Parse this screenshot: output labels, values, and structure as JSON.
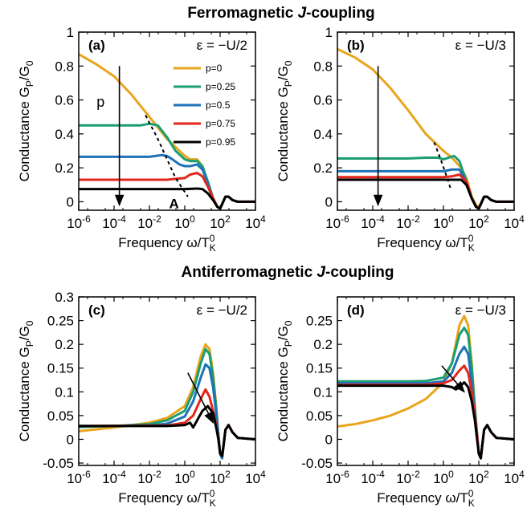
{
  "titles": {
    "top_prefix": "Ferromagnetic ",
    "top_italic": "J",
    "top_suffix": "-coupling",
    "bottom_prefix": "Antiferromagnetic ",
    "bottom_italic": "J",
    "bottom_suffix": "-coupling"
  },
  "colors": {
    "p0": "#e8a51c",
    "p025": "#1a9e72",
    "p05": "#1e72b8",
    "p075": "#e1261c",
    "p095": "#000000"
  },
  "legend": [
    "p=0",
    "p=0.25",
    "p=0.5",
    "p=0.75",
    "p=0.95"
  ],
  "chart_data": [
    {
      "panel": "(a)",
      "type": "line",
      "epsilon": "ε = −U/2",
      "xlabel": "Frequency ω/T_K^0",
      "ylabel": "Conductance G_P/G_0",
      "xscale": "log",
      "xlim": [
        1e-06,
        10000.0
      ],
      "ylim": [
        -0.05,
        1.0
      ],
      "xticks": [
        -6,
        -4,
        -2,
        0,
        2,
        4
      ],
      "yticks": [
        "0",
        "0.2",
        "0.4",
        "0.6",
        "0.8",
        "1"
      ],
      "yticks_values": [
        0,
        0.2,
        0.4,
        0.6,
        0.8,
        1.0
      ],
      "annotations": {
        "arrow_label": "p",
        "dashed_label": "A"
      },
      "series": [
        {
          "name": "p=0",
          "x": [
            1e-06,
            1e-05,
            0.0001,
            0.001,
            0.01,
            0.1,
            1,
            2,
            5,
            10,
            20,
            40,
            70,
            100,
            150,
            200,
            300,
            500,
            1000,
            10000
          ],
          "y": [
            0.87,
            0.81,
            0.74,
            0.63,
            0.5,
            0.37,
            0.27,
            0.25,
            0.25,
            0.21,
            0.12,
            0.02,
            -0.03,
            -0.04,
            0.0,
            0.03,
            0.03,
            0.01,
            0.0,
            0.0
          ]
        },
        {
          "name": "p=0.25",
          "x": [
            1e-06,
            0.0001,
            0.001,
            0.003,
            0.01,
            0.03,
            0.1,
            0.3,
            1,
            2,
            5,
            10,
            20,
            40,
            70,
            100,
            150,
            200,
            300,
            500,
            1000,
            10000
          ],
          "y": [
            0.45,
            0.45,
            0.45,
            0.45,
            0.46,
            0.45,
            0.38,
            0.3,
            0.25,
            0.24,
            0.24,
            0.21,
            0.12,
            0.02,
            -0.03,
            -0.04,
            0.0,
            0.03,
            0.03,
            0.01,
            0.0,
            0.0
          ]
        },
        {
          "name": "p=0.5",
          "x": [
            1e-06,
            0.001,
            0.01,
            0.05,
            0.1,
            0.2,
            0.5,
            1,
            2,
            5,
            10,
            20,
            40,
            70,
            100,
            150,
            200,
            300,
            500,
            1000,
            10000
          ],
          "y": [
            0.265,
            0.265,
            0.265,
            0.275,
            0.27,
            0.25,
            0.22,
            0.21,
            0.21,
            0.22,
            0.19,
            0.11,
            0.02,
            -0.03,
            -0.04,
            0.0,
            0.03,
            0.03,
            0.01,
            0.0,
            0.0
          ]
        },
        {
          "name": "p=0.75",
          "x": [
            1e-06,
            0.01,
            0.1,
            0.3,
            1,
            2,
            5,
            10,
            20,
            40,
            70,
            100,
            150,
            200,
            300,
            500,
            1000,
            10000
          ],
          "y": [
            0.13,
            0.13,
            0.13,
            0.135,
            0.14,
            0.16,
            0.17,
            0.15,
            0.09,
            0.02,
            -0.03,
            -0.04,
            0.0,
            0.03,
            0.03,
            0.01,
            0.0,
            0.0
          ]
        },
        {
          "name": "p=0.95",
          "x": [
            1e-06,
            1,
            5,
            10,
            20,
            40,
            70,
            100,
            150,
            200,
            300,
            500,
            1000,
            10000
          ],
          "y": [
            0.075,
            0.075,
            0.078,
            0.075,
            0.05,
            0.01,
            -0.03,
            -0.04,
            0.0,
            0.03,
            0.03,
            0.01,
            0.0,
            0.0
          ]
        }
      ],
      "arrow": {
        "x": 0.0002,
        "y_from": 0.8,
        "y_to": -0.02
      },
      "dashed": {
        "x": [
          0.006,
          0.03,
          0.1,
          0.3,
          1.5
        ],
        "y": [
          0.51,
          0.37,
          0.25,
          0.14,
          0.03
        ]
      }
    },
    {
      "panel": "(b)",
      "type": "line",
      "epsilon": "ε = −U/3",
      "xlabel": "Frequency ω/T_K^0",
      "ylabel": "Conductance G_P/G_0",
      "xscale": "log",
      "xlim": [
        1e-06,
        10000.0
      ],
      "ylim": [
        -0.05,
        1.0
      ],
      "xticks": [
        -6,
        -4,
        -2,
        0,
        2,
        4
      ],
      "yticks": [
        "0",
        "0.2",
        "0.4",
        "0.6",
        "0.8",
        "1"
      ],
      "yticks_values": [
        0,
        0.2,
        0.4,
        0.6,
        0.8,
        1.0
      ],
      "series": [
        {
          "name": "p=0",
          "x": [
            1e-06,
            1e-05,
            0.0001,
            0.001,
            0.01,
            0.1,
            1,
            3,
            10,
            20,
            40,
            70,
            100,
            150,
            200,
            300,
            500,
            1000,
            10000
          ],
          "y": [
            0.9,
            0.85,
            0.78,
            0.67,
            0.54,
            0.4,
            0.3,
            0.26,
            0.2,
            0.14,
            0.03,
            -0.02,
            -0.03,
            0.0,
            0.03,
            0.03,
            0.01,
            0.0,
            0.0
          ]
        },
        {
          "name": "p=0.25",
          "x": [
            1e-06,
            0.01,
            0.1,
            0.5,
            1,
            2,
            4,
            8,
            20,
            40,
            70,
            100,
            150,
            200,
            300,
            500,
            1000,
            10000
          ],
          "y": [
            0.255,
            0.255,
            0.26,
            0.26,
            0.25,
            0.26,
            0.27,
            0.24,
            0.12,
            0.02,
            -0.03,
            -0.04,
            0.0,
            0.03,
            0.03,
            0.01,
            0.0,
            0.0
          ]
        },
        {
          "name": "p=0.5",
          "x": [
            1e-06,
            0.1,
            1,
            3,
            8,
            20,
            40,
            70,
            100,
            150,
            200,
            300,
            500,
            1000,
            10000
          ],
          "y": [
            0.18,
            0.18,
            0.18,
            0.19,
            0.19,
            0.12,
            0.02,
            -0.03,
            -0.04,
            0.0,
            0.03,
            0.03,
            0.01,
            0.0,
            0.0
          ]
        },
        {
          "name": "p=0.75",
          "x": [
            1e-06,
            1,
            3,
            8,
            20,
            40,
            70,
            100,
            150,
            200,
            300,
            500,
            1000,
            10000
          ],
          "y": [
            0.145,
            0.145,
            0.15,
            0.16,
            0.12,
            0.02,
            -0.03,
            -0.04,
            0.0,
            0.03,
            0.03,
            0.01,
            0.0,
            0.0
          ]
        },
        {
          "name": "p=0.95",
          "x": [
            1e-06,
            1,
            5,
            10,
            20,
            40,
            70,
            100,
            150,
            200,
            300,
            500,
            1000,
            10000
          ],
          "y": [
            0.13,
            0.13,
            0.13,
            0.13,
            0.1,
            0.02,
            -0.03,
            -0.04,
            0.0,
            0.03,
            0.03,
            0.01,
            0.0,
            0.0
          ]
        }
      ],
      "arrow": {
        "x": 0.0002,
        "y_from": 0.8,
        "y_to": -0.02
      },
      "dashed": {
        "x": [
          0.3,
          0.7,
          1.3,
          2.5
        ],
        "y": [
          0.35,
          0.25,
          0.17,
          0.08
        ]
      }
    },
    {
      "panel": "(c)",
      "type": "line",
      "epsilon": "ε = −U/2",
      "xlabel": "Frequency ω/T_K^0",
      "ylabel": "Conductance G_P/G_0",
      "xscale": "log",
      "xlim": [
        1e-06,
        10000.0
      ],
      "ylim": [
        -0.055,
        0.3
      ],
      "xticks": [
        -6,
        -4,
        -2,
        0,
        2,
        4
      ],
      "yticks": [
        "-0.05",
        "0",
        "0.05",
        "0.1",
        "0.15",
        "0.2",
        "0.25",
        "0.3"
      ],
      "yticks_values": [
        -0.05,
        0,
        0.05,
        0.1,
        0.15,
        0.2,
        0.25,
        0.3
      ],
      "series": [
        {
          "name": "p=0",
          "x": [
            1e-06,
            0.0001,
            0.01,
            0.1,
            1,
            3,
            8,
            15,
            25,
            40,
            60,
            80,
            100,
            130,
            160,
            200,
            300,
            500,
            1000,
            10000
          ],
          "y": [
            0.017,
            0.025,
            0.035,
            0.045,
            0.07,
            0.11,
            0.175,
            0.2,
            0.19,
            0.14,
            0.07,
            0.01,
            -0.03,
            -0.04,
            -0.01,
            0.02,
            0.03,
            0.015,
            0.003,
            0.0
          ]
        },
        {
          "name": "p=0.25",
          "x": [
            1e-06,
            0.0001,
            0.01,
            0.1,
            1,
            3,
            8,
            15,
            25,
            40,
            60,
            80,
            100,
            130,
            160,
            200,
            300,
            500,
            1000,
            10000
          ],
          "y": [
            0.026,
            0.028,
            0.032,
            0.04,
            0.06,
            0.1,
            0.16,
            0.19,
            0.18,
            0.13,
            0.065,
            0.01,
            -0.03,
            -0.04,
            -0.01,
            0.02,
            0.03,
            0.015,
            0.003,
            0.0
          ]
        },
        {
          "name": "p=0.5",
          "x": [
            1e-06,
            0.01,
            0.1,
            1,
            3,
            8,
            15,
            25,
            40,
            60,
            80,
            100,
            130,
            160,
            200,
            300,
            500,
            1000,
            10000
          ],
          "y": [
            0.028,
            0.029,
            0.033,
            0.048,
            0.08,
            0.13,
            0.158,
            0.15,
            0.11,
            0.055,
            0.01,
            -0.03,
            -0.04,
            -0.01,
            0.02,
            0.03,
            0.015,
            0.003,
            0.0
          ]
        },
        {
          "name": "p=0.75",
          "x": [
            1e-06,
            0.1,
            1,
            3,
            8,
            15,
            25,
            40,
            60,
            80,
            100,
            130,
            160,
            200,
            300,
            500,
            1000,
            10000
          ],
          "y": [
            0.028,
            0.029,
            0.035,
            0.05,
            0.085,
            0.105,
            0.09,
            0.06,
            0.03,
            0.0,
            -0.03,
            -0.035,
            -0.01,
            0.02,
            0.03,
            0.015,
            0.003,
            0.0
          ]
        },
        {
          "name": "p=0.95",
          "x": [
            1e-06,
            0.1,
            1,
            2,
            3,
            5,
            10,
            20,
            40,
            60,
            80,
            100,
            130,
            160,
            200,
            300,
            500,
            1000,
            10000
          ],
          "y": [
            0.028,
            0.028,
            0.03,
            0.035,
            0.025,
            0.04,
            0.06,
            0.07,
            0.055,
            0.025,
            0.0,
            -0.03,
            -0.035,
            -0.01,
            0.02,
            0.03,
            0.015,
            0.003,
            0.0
          ]
        }
      ],
      "arrow": {
        "x_from": 1.5,
        "y_from": 0.14,
        "x_to": 40,
        "y_to": 0.035
      }
    },
    {
      "panel": "(d)",
      "type": "line",
      "epsilon": "ε = −U/3",
      "xlabel": "Frequency ω/T_K^0",
      "ylabel": "Conductance G_P/G_0",
      "xscale": "log",
      "xlim": [
        1e-06,
        10000.0
      ],
      "ylim": [
        -0.055,
        0.3
      ],
      "xticks": [
        -6,
        -4,
        -2,
        0,
        2,
        4
      ],
      "yticks": [
        "-0.05",
        "0",
        "0.05",
        "0.1",
        "0.15",
        "0.2",
        "0.25"
      ],
      "yticks_values": [
        -0.05,
        0,
        0.05,
        0.1,
        0.15,
        0.2,
        0.25
      ],
      "series": [
        {
          "name": "p=0",
          "x": [
            1e-06,
            1e-05,
            0.0001,
            0.001,
            0.01,
            0.1,
            1,
            3,
            8,
            15,
            25,
            40,
            60,
            80,
            100,
            130,
            160,
            200,
            300,
            500,
            1000,
            10000
          ],
          "y": [
            0.027,
            0.032,
            0.04,
            0.05,
            0.065,
            0.085,
            0.12,
            0.16,
            0.24,
            0.26,
            0.24,
            0.16,
            0.07,
            0.01,
            -0.03,
            -0.04,
            -0.01,
            0.02,
            0.03,
            0.015,
            0.003,
            0.0
          ]
        },
        {
          "name": "p=0.25",
          "x": [
            1e-06,
            0.01,
            0.1,
            1,
            3,
            8,
            15,
            25,
            40,
            60,
            80,
            100,
            130,
            160,
            200,
            300,
            500,
            1000,
            10000
          ],
          "y": [
            0.122,
            0.122,
            0.123,
            0.13,
            0.16,
            0.22,
            0.235,
            0.22,
            0.15,
            0.065,
            0.01,
            -0.03,
            -0.04,
            -0.01,
            0.02,
            0.03,
            0.015,
            0.003,
            0.0
          ]
        },
        {
          "name": "p=0.5",
          "x": [
            1e-06,
            0.1,
            1,
            3,
            8,
            15,
            25,
            40,
            60,
            80,
            100,
            130,
            160,
            200,
            300,
            500,
            1000,
            10000
          ],
          "y": [
            0.118,
            0.118,
            0.122,
            0.14,
            0.18,
            0.195,
            0.18,
            0.12,
            0.055,
            0.01,
            -0.03,
            -0.04,
            -0.01,
            0.02,
            0.03,
            0.015,
            0.003,
            0.0
          ]
        },
        {
          "name": "p=0.75",
          "x": [
            1e-06,
            0.1,
            1,
            3,
            8,
            15,
            25,
            40,
            60,
            80,
            100,
            130,
            160,
            200,
            300,
            500,
            1000,
            10000
          ],
          "y": [
            0.115,
            0.115,
            0.118,
            0.125,
            0.145,
            0.155,
            0.14,
            0.1,
            0.05,
            0.01,
            -0.03,
            -0.04,
            -0.01,
            0.02,
            0.03,
            0.015,
            0.003,
            0.0
          ]
        },
        {
          "name": "p=0.95",
          "x": [
            1e-06,
            0.1,
            1,
            3,
            5,
            8,
            15,
            25,
            40,
            60,
            80,
            100,
            130,
            160,
            200,
            300,
            500,
            1000,
            10000
          ],
          "y": [
            0.113,
            0.113,
            0.113,
            0.11,
            0.105,
            0.11,
            0.12,
            0.11,
            0.08,
            0.04,
            0.0,
            -0.03,
            -0.04,
            -0.01,
            0.02,
            0.03,
            0.015,
            0.003,
            0.0
          ]
        }
      ],
      "arrow": {
        "x_from": 0.8,
        "y_from": 0.155,
        "x_to": 15,
        "y_to": 0.1
      }
    }
  ]
}
